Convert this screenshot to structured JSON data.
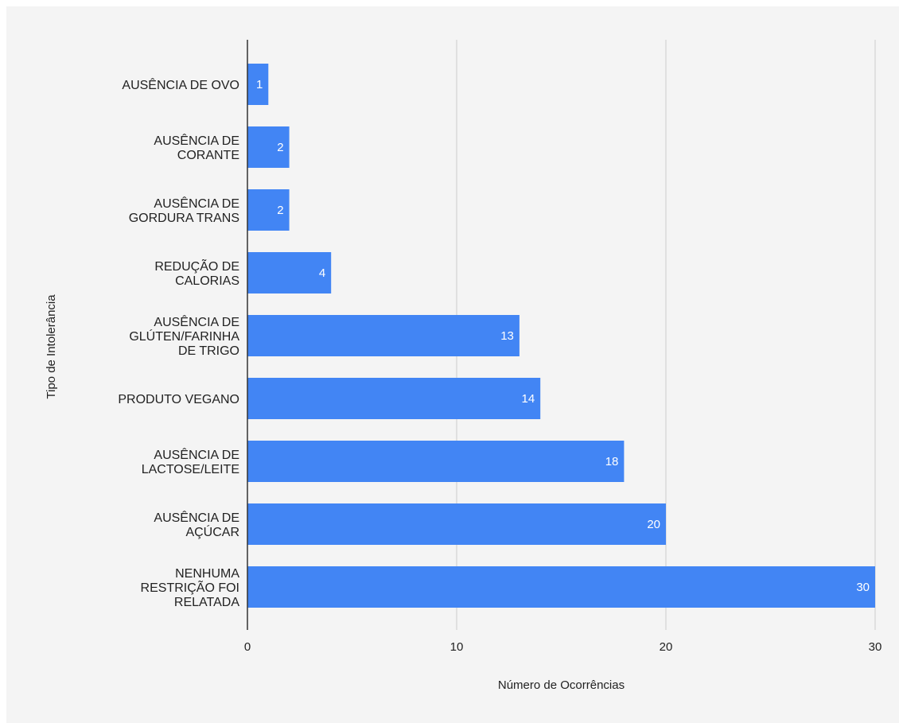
{
  "chart_data": {
    "type": "bar",
    "orientation": "horizontal",
    "categories": [
      "AUSÊNCIA DE OVO",
      "AUSÊNCIA DE CORANTE",
      "AUSÊNCIA DE GORDURA TRANS",
      "REDUÇÃO DE CALORIAS",
      "AUSÊNCIA DE GLÚTEN/FARINHA DE TRIGO",
      "PRODUTO VEGANO",
      "AUSÊNCIA DE LACTOSE/LEITE",
      "AUSÊNCIA DE AÇÚCAR",
      "NENHUMA RESTRIÇÃO FOI RELATADA"
    ],
    "category_lines": [
      [
        "AUSÊNCIA DE OVO"
      ],
      [
        "AUSÊNCIA DE",
        "CORANTE"
      ],
      [
        "AUSÊNCIA DE",
        "GORDURA TRANS"
      ],
      [
        "REDUÇÃO DE",
        "CALORIAS"
      ],
      [
        "AUSÊNCIA DE",
        "GLÚTEN/FARINHA",
        "DE TRIGO"
      ],
      [
        "PRODUTO VEGANO"
      ],
      [
        "AUSÊNCIA DE",
        "LACTOSE/LEITE"
      ],
      [
        "AUSÊNCIA DE",
        "AÇÚCAR"
      ],
      [
        "NENHUMA",
        "RESTRIÇÃO FOI",
        "RELATADA"
      ]
    ],
    "values": [
      1,
      2,
      2,
      4,
      13,
      14,
      18,
      20,
      30
    ],
    "value_labels": [
      "1",
      "2",
      "2",
      "4",
      "13",
      "14",
      "18",
      "20",
      "30"
    ],
    "xlabel": "Número de Ocorrências",
    "ylabel": "Tipo de Intolerância",
    "xlim": [
      0,
      30
    ],
    "x_ticks": [
      0,
      10,
      20,
      30
    ],
    "x_tick_labels": [
      "0",
      "10",
      "20",
      "30"
    ],
    "grid": true,
    "colors": {
      "bar": "#4285f4",
      "grid": "#cccccc",
      "axis": "#333333",
      "background": "#f4f4f4"
    }
  }
}
